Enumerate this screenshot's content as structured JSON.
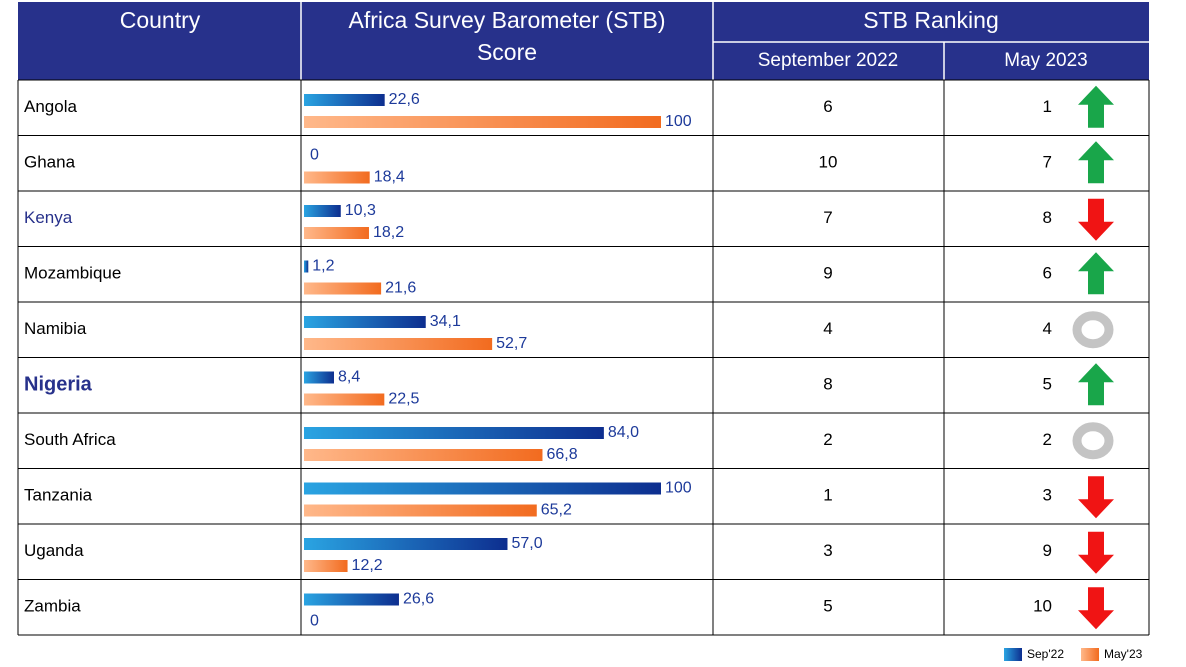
{
  "table": {
    "headers": [
      "Country",
      "Africa Survey Barometer (STB) Score"
    ],
    "group_header": "STB Ranking",
    "subheaders": [
      "September 2022",
      "May 2023"
    ],
    "rank_sep": [
      6,
      10,
      7,
      9,
      4,
      8,
      2,
      1,
      3,
      5
    ],
    "rank_may": [
      1,
      7,
      8,
      6,
      4,
      5,
      2,
      3,
      9,
      10
    ]
  },
  "chart_data": {
    "type": "bar",
    "orientation": "horizontal",
    "categories": [
      "Angola",
      "Ghana",
      "Kenya",
      "Mozambique",
      "Namibia",
      "Nigeria",
      "South Africa",
      "Tanzania",
      "Uganda",
      "Zambia"
    ],
    "xlim": [
      0,
      100
    ],
    "series": [
      {
        "name": "Sep'22",
        "color": "#0d2e8f",
        "values": [
          22.6,
          0,
          10.3,
          1.2,
          34.1,
          8.4,
          84.0,
          100,
          57.0,
          26.6
        ],
        "value_labels": [
          "22,6",
          "0",
          "10,3",
          "1,2",
          "34,1",
          "8,4",
          "84,0",
          "100",
          "57,0",
          "26,6"
        ]
      },
      {
        "name": "May'23",
        "color": "#f26b1f",
        "values": [
          100,
          18.4,
          18.2,
          21.6,
          52.7,
          22.5,
          66.8,
          65.2,
          12.2,
          0
        ],
        "value_labels": [
          "100",
          "18,4",
          "18,2",
          "21,6",
          "52,7",
          "22,5",
          "66,8",
          "65,2",
          "12,2",
          "0"
        ]
      }
    ]
  }
}
